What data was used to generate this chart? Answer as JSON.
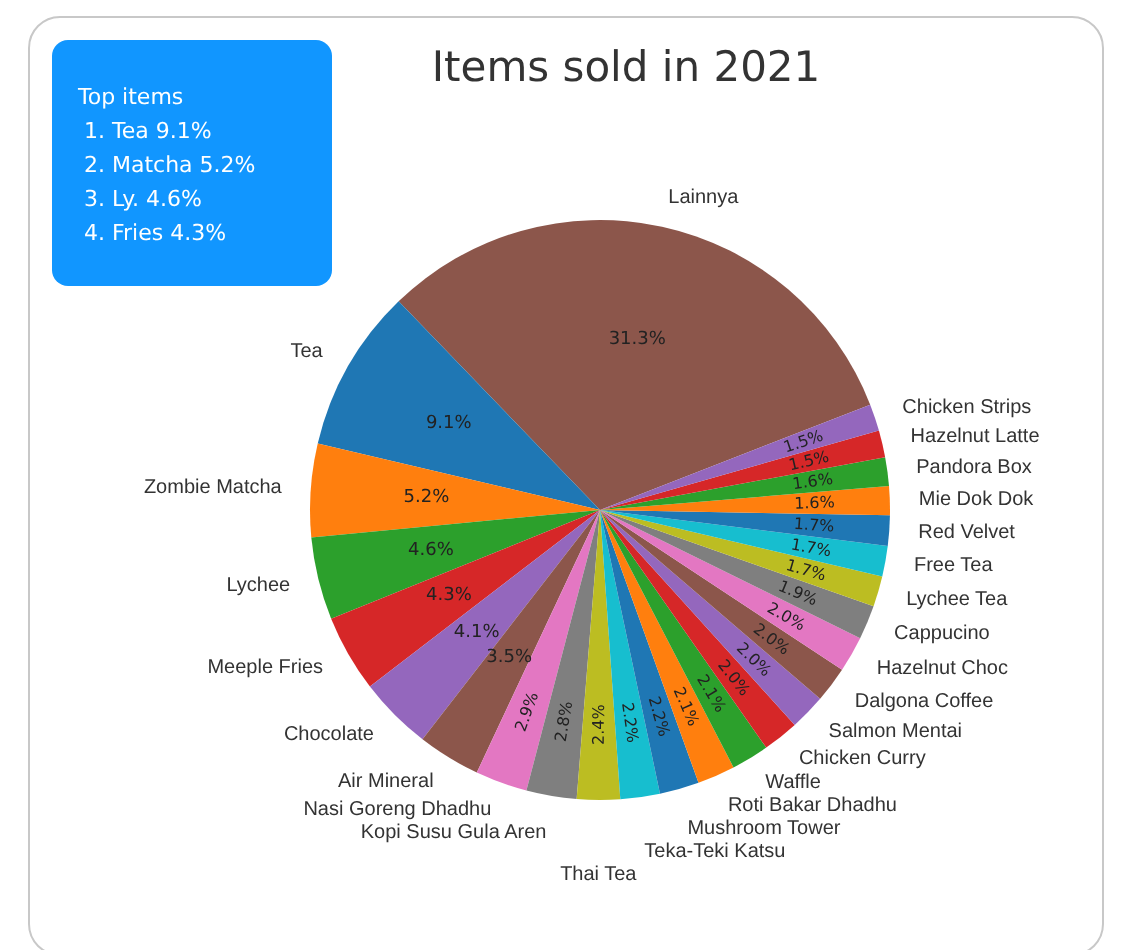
{
  "chart_data": {
    "type": "pie",
    "title": "Items sold in 2021",
    "categories": [
      "Lainnya",
      "Tea",
      "Zombie Matcha",
      "Lychee",
      "Meeple Fries",
      "Chocolate",
      "Air Mineral",
      "Nasi Goreng Dhadhu",
      "Kopi Susu Gula Aren",
      "Thai Tea",
      "Teka-Teki Katsu",
      "Mushroom Tower",
      "Roti Bakar Dhadhu",
      "Waffle",
      "Chicken Curry",
      "Salmon Mentai",
      "Dalgona Coffee",
      "Hazelnut Choc",
      "Cappucino",
      "Lychee Tea",
      "Free Tea",
      "Red Velvet",
      "Mie Dok Dok",
      "Pandora Box",
      "Hazelnut Latte",
      "Chicken Strips"
    ],
    "values": [
      31.3,
      9.1,
      5.2,
      4.6,
      4.3,
      4.1,
      3.5,
      2.9,
      2.8,
      2.4,
      2.2,
      2.2,
      2.1,
      2.1,
      2.0,
      2.0,
      2.0,
      2.0,
      1.9,
      1.7,
      1.7,
      1.7,
      1.6,
      1.6,
      1.5,
      1.5
    ],
    "value_labels": [
      "31.3%",
      "9.1%",
      "5.2%",
      "4.6%",
      "4.3%",
      "4.1%",
      "3.5%",
      "2.9%",
      "2.8%",
      "2.4%",
      "2.2%",
      "2.2%",
      "2.1%",
      "2.1%",
      "2.0%",
      "2.0%",
      "2.0%",
      "2.0%",
      "1.9%",
      "1.7%",
      "1.7%",
      "1.7%",
      "1.6%",
      "1.6%",
      "1.5%",
      "1.5%"
    ],
    "colors": [
      "#8c564b",
      "#1f77b4",
      "#ff7f0e",
      "#2ca02c",
      "#d62728",
      "#9467bd",
      "#8c564b",
      "#e377c2",
      "#7f7f7f",
      "#bcbd22",
      "#17becf",
      "#1f77b4",
      "#ff7f0e",
      "#2ca02c",
      "#d62728",
      "#9467bd",
      "#8c564b",
      "#e377c2",
      "#7f7f7f",
      "#bcbd22",
      "#17becf",
      "#1f77b4",
      "#ff7f0e",
      "#2ca02c",
      "#d62728",
      "#9467bd"
    ],
    "annotations": [
      "Top items",
      "1. Tea 9.1%",
      "2. Matcha 5.2%",
      "3. Ly. 4.6%",
      "4. Fries 4.3%"
    ]
  }
}
